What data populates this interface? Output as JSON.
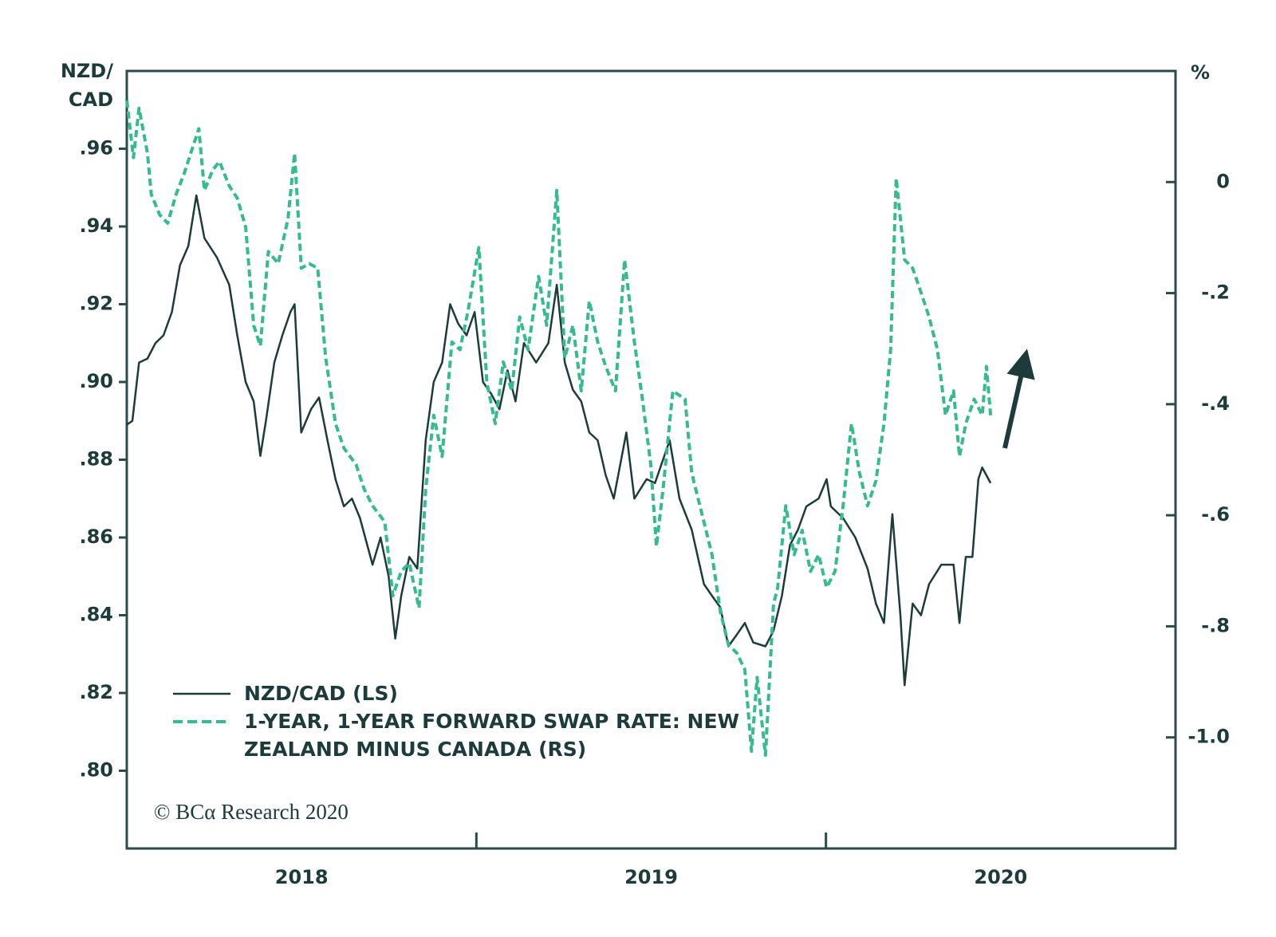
{
  "chart_data": {
    "type": "line",
    "ylabel_lines": [
      "NZD/",
      "CAD"
    ],
    "y2label": "%",
    "xlim": [
      2018,
      2021
    ],
    "xticks": [
      {
        "value": 2018.5,
        "label": "2018"
      },
      {
        "value": 2019.5,
        "label": "2019"
      },
      {
        "value": 2020.5,
        "label": "2020"
      }
    ],
    "x_minor_ticks": [
      2019,
      2020
    ],
    "ylim": [
      0.78,
      0.98
    ],
    "yticks": [
      {
        "value": 0.8,
        "label": ".80"
      },
      {
        "value": 0.82,
        "label": ".82"
      },
      {
        "value": 0.84,
        "label": ".84"
      },
      {
        "value": 0.86,
        "label": ".86"
      },
      {
        "value": 0.88,
        "label": ".88"
      },
      {
        "value": 0.9,
        "label": ".90"
      },
      {
        "value": 0.92,
        "label": ".92"
      },
      {
        "value": 0.94,
        "label": ".94"
      },
      {
        "value": 0.96,
        "label": ".96"
      }
    ],
    "y2lim": [
      -1.2,
      0.2
    ],
    "y2ticks": [
      {
        "value": -1.0,
        "label": "-1.0"
      },
      {
        "value": -0.8,
        "label": "-.8"
      },
      {
        "value": -0.6,
        "label": "-.6"
      },
      {
        "value": -0.4,
        "label": "-.4"
      },
      {
        "value": -0.2,
        "label": "-.2"
      },
      0
    ],
    "series": [
      {
        "name": "NZD/CAD (LS)",
        "color": "#1d3b3b",
        "axis": "y",
        "line_style": "solid",
        "x": [
          2018.0,
          2018.016,
          2018.035,
          2018.059,
          2018.082,
          2018.105,
          2018.129,
          2018.152,
          2018.176,
          2018.199,
          2018.222,
          2018.258,
          2018.293,
          2018.316,
          2018.34,
          2018.363,
          2018.382,
          2018.398,
          2018.422,
          2018.445,
          2018.468,
          2018.48,
          2018.499,
          2018.527,
          2018.55,
          2018.574,
          2018.597,
          2018.621,
          2018.644,
          2018.667,
          2018.703,
          2018.726,
          2018.749,
          2018.768,
          2018.785,
          2018.808,
          2018.831,
          2018.855,
          2018.878,
          2018.902,
          2018.925,
          2018.948,
          2018.972,
          2018.995,
          2019.019,
          2019.042,
          2019.066,
          2019.089,
          2019.112,
          2019.136,
          2019.171,
          2019.206,
          2019.23,
          2019.253,
          2019.276,
          2019.3,
          2019.323,
          2019.347,
          2019.37,
          2019.393,
          2019.429,
          2019.452,
          2019.487,
          2019.511,
          2019.553,
          2019.581,
          2019.616,
          2019.651,
          2019.674,
          2019.698,
          2019.721,
          2019.745,
          2019.768,
          2019.792,
          2019.827,
          2019.85,
          2019.874,
          2019.897,
          2019.92,
          2019.944,
          2019.979,
          2020.002,
          2020.014,
          2020.049,
          2020.084,
          2020.119,
          2020.143,
          2020.166,
          2020.19,
          2020.213,
          2020.225,
          2020.248,
          2020.272,
          2020.295,
          2020.33,
          2020.365,
          2020.382,
          2020.4,
          2020.419,
          2020.436,
          2020.447,
          2020.459,
          2020.471
        ],
        "values": [
          0.889,
          0.89,
          0.905,
          0.906,
          0.91,
          0.912,
          0.918,
          0.93,
          0.935,
          0.948,
          0.937,
          0.932,
          0.925,
          0.912,
          0.9,
          0.895,
          0.881,
          0.89,
          0.905,
          0.912,
          0.918,
          0.92,
          0.887,
          0.893,
          0.896,
          0.885,
          0.875,
          0.868,
          0.87,
          0.865,
          0.853,
          0.86,
          0.85,
          0.834,
          0.845,
          0.855,
          0.852,
          0.885,
          0.9,
          0.905,
          0.92,
          0.915,
          0.912,
          0.918,
          0.9,
          0.897,
          0.893,
          0.903,
          0.895,
          0.91,
          0.905,
          0.91,
          0.925,
          0.905,
          0.898,
          0.895,
          0.887,
          0.885,
          0.876,
          0.87,
          0.887,
          0.87,
          0.875,
          0.874,
          0.885,
          0.87,
          0.862,
          0.848,
          0.845,
          0.842,
          0.832,
          0.835,
          0.838,
          0.833,
          0.832,
          0.836,
          0.845,
          0.858,
          0.862,
          0.868,
          0.87,
          0.875,
          0.868,
          0.865,
          0.86,
          0.852,
          0.843,
          0.838,
          0.866,
          0.84,
          0.822,
          0.843,
          0.84,
          0.848,
          0.853,
          0.853,
          0.838,
          0.855,
          0.855,
          0.875,
          0.878,
          0.876,
          0.874
        ]
      },
      {
        "name": "1-YEAR, 1-YEAR FORWARD SWAP RATE: NEW ZEALAND MINUS CANADA (RS)",
        "color": "#35bb8e",
        "axis": "y2",
        "line_style": "dashed",
        "x": [
          2018.0,
          2018.019,
          2018.035,
          2018.059,
          2018.07,
          2018.094,
          2018.117,
          2018.141,
          2018.164,
          2018.183,
          2018.206,
          2018.222,
          2018.246,
          2018.265,
          2018.293,
          2018.316,
          2018.34,
          2018.363,
          2018.382,
          2018.405,
          2018.433,
          2018.461,
          2018.48,
          2018.499,
          2018.522,
          2018.546,
          2018.569,
          2018.597,
          2018.621,
          2018.656,
          2018.679,
          2018.703,
          2018.738,
          2018.761,
          2018.785,
          2018.808,
          2018.836,
          2018.855,
          2018.878,
          2018.902,
          2018.93,
          2018.953,
          2018.977,
          2019.007,
          2019.03,
          2019.054,
          2019.077,
          2019.101,
          2019.124,
          2019.148,
          2019.178,
          2019.201,
          2019.23,
          2019.253,
          2019.276,
          2019.3,
          2019.323,
          2019.347,
          2019.37,
          2019.398,
          2019.424,
          2019.452,
          2019.475,
          2019.499,
          2019.515,
          2019.534,
          2019.562,
          2019.597,
          2019.616,
          2019.651,
          2019.674,
          2019.698,
          2019.721,
          2019.745,
          2019.768,
          2019.787,
          2019.803,
          2019.827,
          2019.85,
          2019.862,
          2019.885,
          2019.909,
          2019.932,
          2019.956,
          2019.979,
          2020.002,
          2020.026,
          2020.049,
          2020.073,
          2020.096,
          2020.119,
          2020.143,
          2020.166,
          2020.185,
          2020.201,
          2020.225,
          2020.248,
          2020.272,
          2020.295,
          2020.319,
          2020.342,
          2020.365,
          2020.382,
          2020.4,
          2020.424,
          2020.447,
          2020.459,
          2020.471
        ],
        "values": [
          0.147,
          0.044,
          0.133,
          0.052,
          -0.022,
          -0.059,
          -0.074,
          -0.022,
          0.015,
          0.052,
          0.096,
          -0.015,
          0.022,
          0.037,
          -0.007,
          -0.029,
          -0.081,
          -0.258,
          -0.295,
          -0.125,
          -0.147,
          -0.066,
          0.052,
          -0.155,
          -0.147,
          -0.155,
          -0.317,
          -0.435,
          -0.479,
          -0.509,
          -0.553,
          -0.583,
          -0.612,
          -0.745,
          -0.701,
          -0.686,
          -0.767,
          -0.553,
          -0.42,
          -0.494,
          -0.288,
          -0.302,
          -0.229,
          -0.118,
          -0.361,
          -0.435,
          -0.324,
          -0.376,
          -0.243,
          -0.302,
          -0.17,
          -0.258,
          -0.015,
          -0.317,
          -0.258,
          -0.376,
          -0.214,
          -0.288,
          -0.332,
          -0.376,
          -0.14,
          -0.288,
          -0.391,
          -0.509,
          -0.656,
          -0.553,
          -0.376,
          -0.391,
          -0.524,
          -0.612,
          -0.671,
          -0.774,
          -0.833,
          -0.848,
          -0.878,
          -1.025,
          -0.892,
          -1.032,
          -0.76,
          -0.73,
          -0.583,
          -0.671,
          -0.627,
          -0.701,
          -0.671,
          -0.73,
          -0.701,
          -0.583,
          -0.435,
          -0.524,
          -0.583,
          -0.538,
          -0.435,
          -0.302,
          0.007,
          -0.14,
          -0.155,
          -0.199,
          -0.243,
          -0.302,
          -0.42,
          -0.376,
          -0.494,
          -0.435,
          -0.391,
          -0.42,
          -0.332,
          -0.42
        ]
      }
    ],
    "source_note": "© BCα Research 2020"
  }
}
